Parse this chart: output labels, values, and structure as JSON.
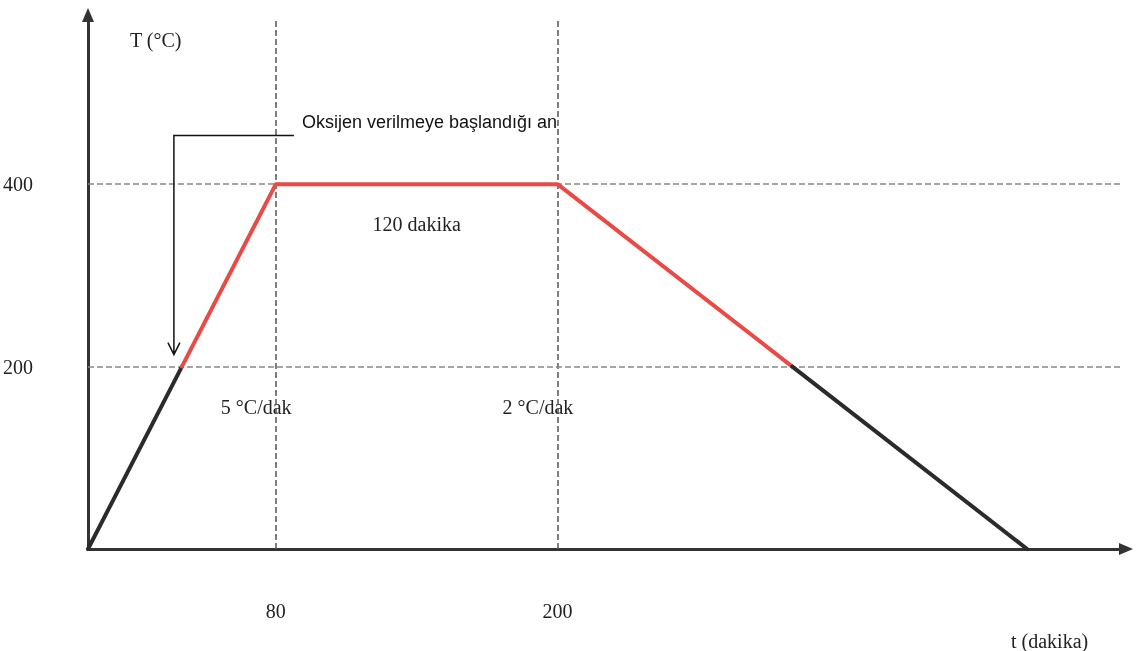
{
  "chart_data": {
    "type": "line",
    "xlabel": "t (dakika)",
    "ylabel": "T (°C)",
    "series": [
      {
        "color": "#2b2b2b",
        "x": [
          0,
          40
        ],
        "values": [
          0,
          200
        ]
      },
      {
        "color": "#ea4a45",
        "x": [
          40,
          80,
          200,
          300
        ],
        "values": [
          200,
          400,
          400,
          200
        ]
      },
      {
        "color": "#2b2b2b",
        "x": [
          300,
          400
        ],
        "values": [
          200,
          0
        ]
      }
    ],
    "xlim": [
      0,
      440
    ],
    "xticks": [
      80,
      200
    ],
    "ylim": [
      0,
      580
    ],
    "yticks": [
      200,
      400
    ],
    "ref_lines": [
      {
        "axis": "y",
        "value": 400,
        "color": "#888888",
        "line_style": "dashed"
      },
      {
        "axis": "y",
        "value": 200,
        "color": "#888888",
        "line_style": "dashed"
      },
      {
        "axis": "x",
        "value": 80,
        "color": "#555555",
        "line_style": "dashed"
      },
      {
        "axis": "x",
        "value": 200,
        "color": "#555555",
        "line_style": "dashed"
      }
    ],
    "annotations": [
      "Oksijen verilmeye başlandığı an",
      {
        "text": "120 dakika",
        "x": 140,
        "y": 400
      },
      {
        "text": "5 °C/dak",
        "x": 80,
        "y": 200
      },
      {
        "text": "2 °C/dak",
        "x": 200,
        "y": 200
      }
    ],
    "marker": "none",
    "line_style": "solid",
    "grid": false
  }
}
